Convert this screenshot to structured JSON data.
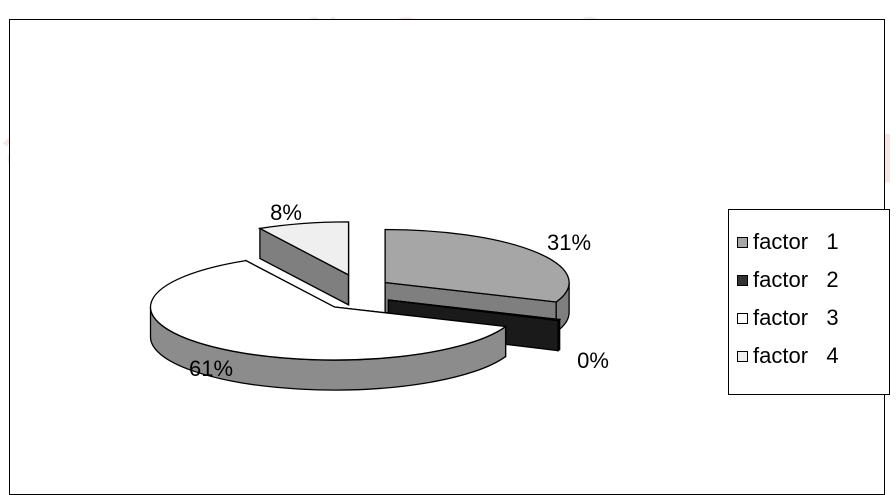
{
  "watermark": {
    "line1": "สถาบันวิทยบริการ",
    "line2": "จุฬาลงกรณ์มหาวิทยาลัย",
    "color": "#f6e7e7"
  },
  "chart_data": {
    "type": "pie",
    "title": "",
    "slices": [
      {
        "name": "factor   1",
        "value": 31,
        "label": "31%",
        "color": "#a6a6a6",
        "side_color": "#7f7f7f"
      },
      {
        "name": "factor   2",
        "value": 0,
        "label": "0%",
        "color": "#333333",
        "side_color": "#1a1a1a"
      },
      {
        "name": "factor   3",
        "value": 61,
        "label": "61%",
        "color": "#ffffff",
        "side_color": "#8c8c8c"
      },
      {
        "name": "factor   4",
        "value": 8,
        "label": "8%",
        "color": "#efefef",
        "side_color": "#7f7f7f"
      }
    ],
    "legend_position": "right",
    "exploded": true,
    "style": "3d"
  }
}
